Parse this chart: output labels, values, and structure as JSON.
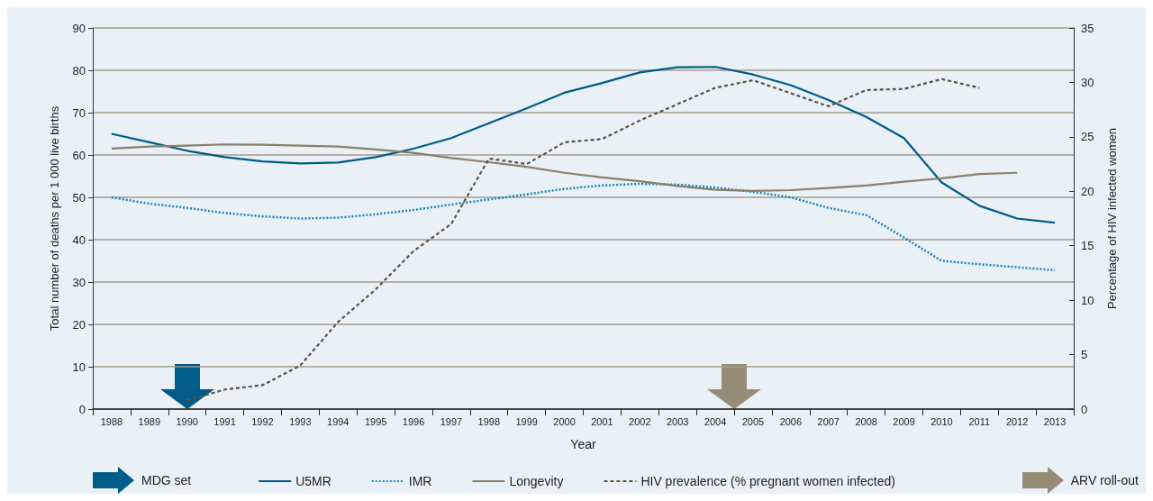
{
  "chart_data": {
    "type": "line",
    "xlabel": "Year",
    "ylabel": "Total number of deaths per 1 000 live births",
    "y2label": "Percentage of HIV infected women",
    "categories": [
      "1988",
      "1989",
      "1990",
      "1991",
      "1992",
      "1993",
      "1994",
      "1995",
      "1996",
      "1997",
      "1998",
      "1999",
      "2000",
      "2001",
      "2002",
      "2003",
      "2004",
      "2005",
      "2006",
      "2007",
      "2008",
      "2009",
      "2010",
      "2011",
      "2012",
      "2013"
    ],
    "series": [
      {
        "name": "U5MR",
        "color": "#005b88",
        "line_style": "solid",
        "values": [
          65,
          63,
          61,
          59.5,
          58.5,
          58,
          58.2,
          59.5,
          61.5,
          64,
          67.5,
          71,
          74.7,
          77,
          79.5,
          80.7,
          80.8,
          79,
          76.5,
          73,
          69,
          64,
          53.5,
          48,
          45,
          44
        ]
      },
      {
        "name": "IMR",
        "color": "#1a87b8",
        "line_style": "dotted",
        "values": [
          50,
          48.5,
          47.5,
          46.3,
          45.5,
          45,
          45.2,
          46,
          47,
          48.3,
          49.5,
          50.7,
          52,
          52.8,
          53.2,
          53,
          52.3,
          51.3,
          50,
          47.5,
          45.8,
          40.5,
          35,
          34.2,
          33.5,
          32.8
        ]
      },
      {
        "name": "Longevity",
        "color": "#8a7f6c",
        "line_style": "solid",
        "values": [
          61.5,
          62,
          62.2,
          62.5,
          62.4,
          62.2,
          62,
          61.3,
          60.5,
          59.3,
          58.3,
          57.2,
          55.8,
          54.7,
          53.8,
          52.7,
          51.8,
          51.5,
          51.7,
          52.2,
          52.8,
          53.7,
          54.5,
          55.5,
          55.8,
          null
        ]
      },
      {
        "name": "HIV prevalence (% pregnant women infected)",
        "color": "#5e5240",
        "line_style": "dashed",
        "axis": "y2",
        "values": [
          null,
          null,
          0.8,
          1.8,
          2.2,
          4,
          8,
          11,
          14.5,
          17,
          23,
          22.5,
          24.5,
          24.8,
          26.5,
          28,
          29.5,
          30.2,
          29,
          27.8,
          29.3,
          29.4,
          30.3,
          29.5,
          null,
          null
        ]
      }
    ],
    "ylim": [
      0,
      90
    ],
    "yticks": [
      0,
      10,
      20,
      30,
      40,
      50,
      60,
      70,
      80,
      90
    ],
    "y2lim": [
      0,
      35
    ],
    "y2ticks": [
      0,
      5,
      10,
      15,
      20,
      25,
      30,
      35
    ],
    "grid": "y",
    "legend": "bottom",
    "marker": "none",
    "annotations": [
      "MDG set",
      "ARV roll-out"
    ]
  }
}
